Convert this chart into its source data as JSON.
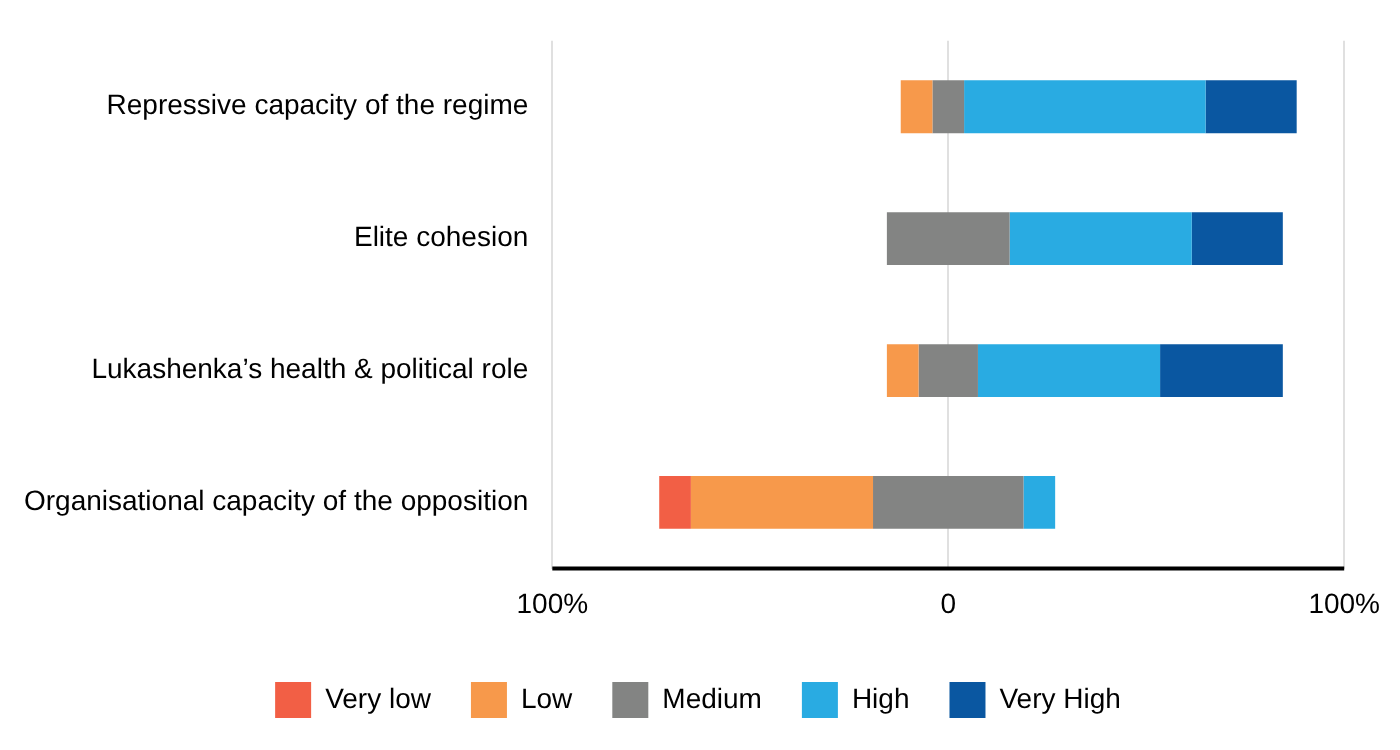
{
  "chart_data": {
    "type": "bar",
    "orientation": "horizontal",
    "categories": [
      "Repressive capacity of the regime",
      "Elite cohesion",
      "Lukashenka’s health & political role",
      "Organisational capacity of the opposition"
    ],
    "series": [
      {
        "name": "Very low",
        "color": "#f25f45",
        "values": [
          null,
          null,
          null,
          8
        ],
        "base": [
          null,
          null,
          null,
          -73
        ]
      },
      {
        "name": "Low",
        "color": "#f7994b",
        "values": [
          8,
          null,
          8,
          46
        ],
        "base": [
          -12,
          null,
          -15.5,
          -65
        ]
      },
      {
        "name": "Medium",
        "color": "#838483",
        "values": [
          8,
          31,
          15,
          38
        ],
        "base": [
          -4,
          -15.5,
          -7.5,
          -19
        ]
      },
      {
        "name": "High",
        "color": "#29abe2",
        "values": [
          61,
          46,
          46,
          8
        ],
        "base": [
          4,
          15.5,
          7.5,
          19
        ]
      },
      {
        "name": "Very High",
        "color": "#0a57a1",
        "values": [
          23,
          23,
          31,
          null
        ],
        "base": [
          65,
          61.5,
          53.5,
          null
        ]
      }
    ],
    "xlim": [
      -100,
      100
    ],
    "xticks": [
      {
        "value": -100,
        "label": "100%"
      },
      {
        "value": 0,
        "label": "0"
      },
      {
        "value": 100,
        "label": "100%"
      }
    ],
    "grid": "x",
    "legend": "bottom"
  }
}
